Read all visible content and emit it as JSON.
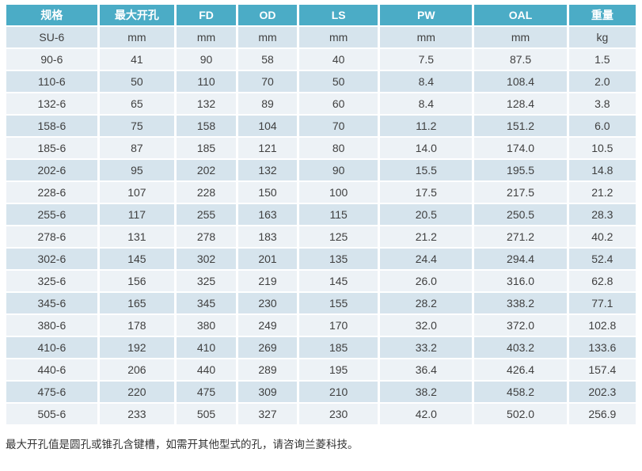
{
  "colors": {
    "header_bg": "#4BACC6",
    "header_text": "#FFFFFF",
    "row_dark": "#D6E4ED",
    "row_light": "#EDF2F6",
    "cell_text": "#3F3F3F",
    "note_text": "#333333"
  },
  "table": {
    "columns": [
      "规格",
      "最大开孔",
      "FD",
      "OD",
      "LS",
      "PW",
      "OAL",
      "重量"
    ],
    "units_row": [
      "SU-6",
      "mm",
      "mm",
      "mm",
      "mm",
      "mm",
      "mm",
      "kg"
    ],
    "rows": [
      [
        "90-6",
        "41",
        "90",
        "58",
        "40",
        "7.5",
        "87.5",
        "1.5"
      ],
      [
        "110-6",
        "50",
        "110",
        "70",
        "50",
        "8.4",
        "108.4",
        "2.0"
      ],
      [
        "132-6",
        "65",
        "132",
        "89",
        "60",
        "8.4",
        "128.4",
        "3.8"
      ],
      [
        "158-6",
        "75",
        "158",
        "104",
        "70",
        "11.2",
        "151.2",
        "6.0"
      ],
      [
        "185-6",
        "87",
        "185",
        "121",
        "80",
        "14.0",
        "174.0",
        "10.5"
      ],
      [
        "202-6",
        "95",
        "202",
        "132",
        "90",
        "15.5",
        "195.5",
        "14.8"
      ],
      [
        "228-6",
        "107",
        "228",
        "150",
        "100",
        "17.5",
        "217.5",
        "21.2"
      ],
      [
        "255-6",
        "117",
        "255",
        "163",
        "115",
        "20.5",
        "250.5",
        "28.3"
      ],
      [
        "278-6",
        "131",
        "278",
        "183",
        "125",
        "21.2",
        "271.2",
        "40.2"
      ],
      [
        "302-6",
        "145",
        "302",
        "201",
        "135",
        "24.4",
        "294.4",
        "52.4"
      ],
      [
        "325-6",
        "156",
        "325",
        "219",
        "145",
        "26.0",
        "316.0",
        "62.8"
      ],
      [
        "345-6",
        "165",
        "345",
        "230",
        "155",
        "28.2",
        "338.2",
        "77.1"
      ],
      [
        "380-6",
        "178",
        "380",
        "249",
        "170",
        "32.0",
        "372.0",
        "102.8"
      ],
      [
        "410-6",
        "192",
        "410",
        "269",
        "185",
        "33.2",
        "403.2",
        "133.6"
      ],
      [
        "440-6",
        "206",
        "440",
        "289",
        "195",
        "36.4",
        "426.4",
        "157.4"
      ],
      [
        "475-6",
        "220",
        "475",
        "309",
        "210",
        "38.2",
        "458.2",
        "202.3"
      ],
      [
        "505-6",
        "233",
        "505",
        "327",
        "230",
        "42.0",
        "502.0",
        "256.9"
      ]
    ]
  },
  "footer": {
    "note": "最大开孔值是圆孔或锥孔含键槽，如需开其他型式的孔，请咨询兰菱科技。"
  }
}
